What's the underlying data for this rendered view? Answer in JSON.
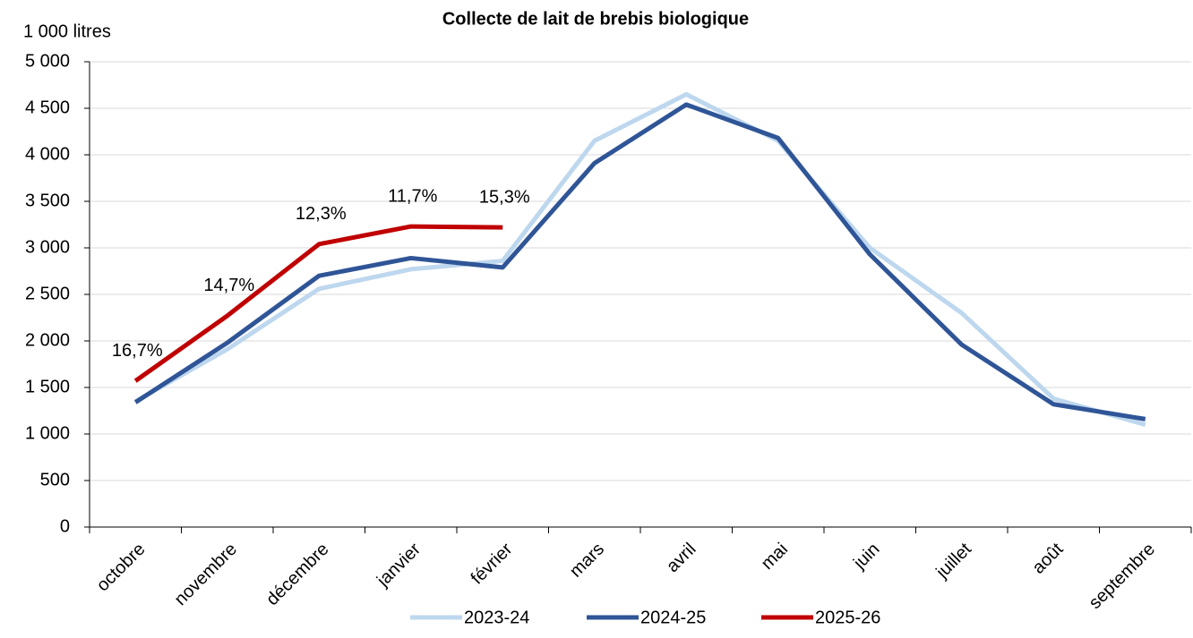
{
  "chart_data": {
    "type": "line",
    "title": "Collecte de lait de brebis biologique",
    "y_axis_label": "1 000 litres",
    "categories": [
      "octobre",
      "novembre",
      "décembre",
      "janvier",
      "février",
      "mars",
      "avril",
      "mai",
      "juin",
      "juillet",
      "août",
      "septembre"
    ],
    "series": [
      {
        "name": "2023-24",
        "color": "#bdd7ee",
        "values": [
          1350,
          1910,
          2560,
          2770,
          2860,
          4150,
          4650,
          4150,
          3000,
          2300,
          1380,
          1100
        ]
      },
      {
        "name": "2024-25",
        "color": "#2f5597",
        "values": [
          1340,
          1980,
          2700,
          2890,
          2790,
          3910,
          4540,
          4180,
          2930,
          1960,
          1320,
          1160
        ]
      },
      {
        "name": "2025-26",
        "color": "#c00000",
        "values": [
          1570,
          2270,
          3040,
          3230,
          3220,
          null,
          null,
          null,
          null,
          null,
          null,
          null
        ],
        "annotations": [
          "16,7%",
          "14,7%",
          "12,3%",
          "11,7%",
          "15,3%"
        ]
      }
    ],
    "ylim": [
      0,
      5000
    ],
    "yticks": [
      0,
      500,
      {
        "value": 1000,
        "label": "1 000"
      },
      {
        "value": 1500,
        "label": "1 500"
      },
      {
        "value": 2000,
        "label": "2 000"
      },
      {
        "value": 2500,
        "label": "2 500"
      },
      {
        "value": 3000,
        "label": "3 000"
      },
      {
        "value": 3500,
        "label": "3 500"
      },
      {
        "value": 4000,
        "label": "4 000"
      },
      {
        "value": 4500,
        "label": "4 500"
      },
      {
        "value": 5000,
        "label": "5 000"
      }
    ],
    "grid": true,
    "legend": "bottom"
  }
}
